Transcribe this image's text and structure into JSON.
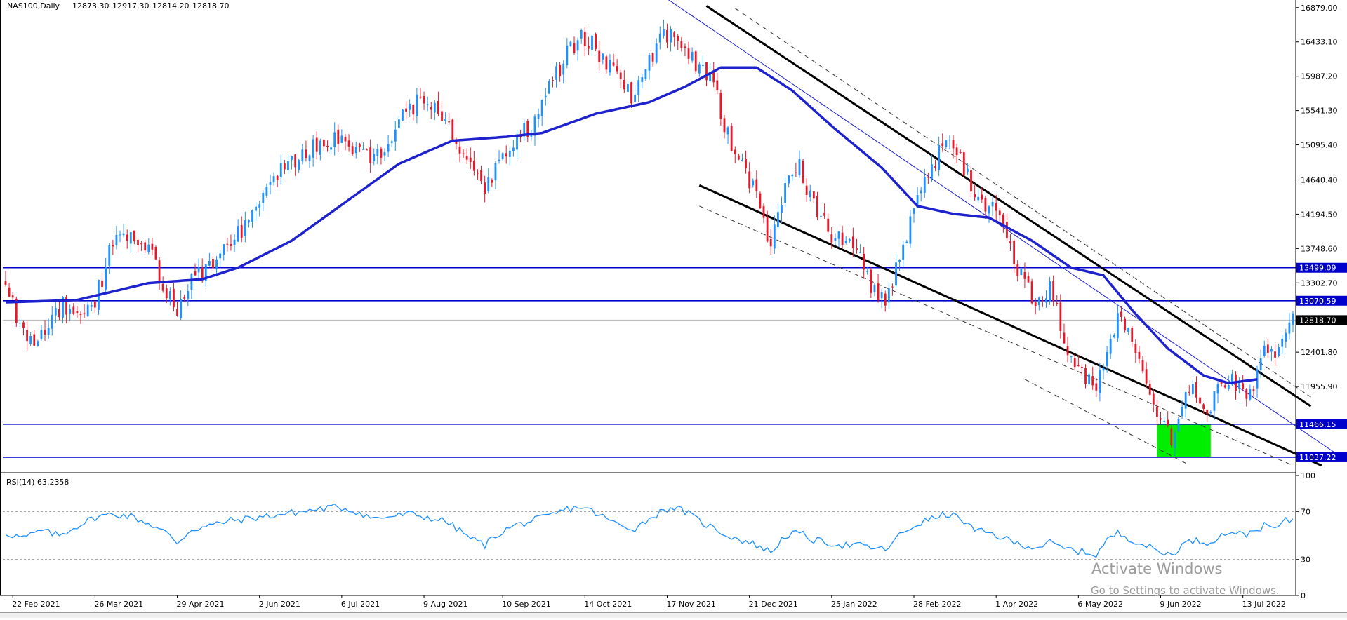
{
  "header": {
    "symbol": "NAS100,Daily",
    "open": "12873.30",
    "high": "12917.30",
    "low": "12814.20",
    "close": "12818.70"
  },
  "watermark": {
    "line1": "Activate Windows",
    "line2": "Go to Settings to activate Windows."
  },
  "chart_data": {
    "type": "candlestick",
    "instrument": "NAS100",
    "timeframe": "Daily",
    "price_axis": {
      "ylim": [
        10900,
        16950
      ],
      "ticks": [
        "16879.00",
        "16433.10",
        "15987.20",
        "15541.30",
        "15095.40",
        "14640.40",
        "14194.50",
        "13748.60",
        "13302.70",
        "12401.80",
        "11955.90"
      ],
      "tick_values": [
        16879.0,
        16433.1,
        15987.2,
        15541.3,
        15095.4,
        14640.4,
        14194.5,
        13748.6,
        13302.7,
        12401.8,
        11955.9
      ]
    },
    "time_axis": {
      "labels": [
        "22 Feb 2021",
        "26 Mar 2021",
        "29 Apr 2021",
        "2 Jun 2021",
        "6 Jul 2021",
        "9 Aug 2021",
        "10 Sep 2021",
        "14 Oct 2021",
        "17 Nov 2021",
        "21 Dec 2021",
        "25 Jan 2022",
        "28 Feb 2022",
        "1 Apr 2022",
        "6 May 2022",
        "9 Jun 2022",
        "13 Jul 2022"
      ],
      "label_bar_index": [
        2,
        25,
        48,
        71,
        94,
        117,
        139,
        162,
        185,
        208,
        231,
        254,
        277,
        300,
        323,
        346
      ]
    },
    "last_price": {
      "value": 12818.7,
      "label": "12818.70"
    },
    "horizontal_levels": [
      {
        "value": 13499.09,
        "label": "13499.09",
        "color": "#0000cc"
      },
      {
        "value": 13070.59,
        "label": "13070.59",
        "color": "#0000cc"
      },
      {
        "value": 11466.15,
        "label": "11466.15",
        "color": "#0000cc"
      },
      {
        "value": 11037.22,
        "label": "11037.22",
        "color": "#0000cc"
      }
    ],
    "colors": {
      "bull": "#1e90ff",
      "bear": "#e8182a",
      "ma": "#1e22cc",
      "level": "#0000cc",
      "zone": "#00ee00",
      "rsi": "#1e90ff"
    },
    "moving_average": [
      [
        0,
        13050
      ],
      [
        20,
        13080
      ],
      [
        40,
        13300
      ],
      [
        55,
        13350
      ],
      [
        65,
        13500
      ],
      [
        80,
        13850
      ],
      [
        95,
        14350
      ],
      [
        110,
        14850
      ],
      [
        125,
        15150
      ],
      [
        140,
        15200
      ],
      [
        150,
        15250
      ],
      [
        165,
        15500
      ],
      [
        180,
        15650
      ],
      [
        190,
        15850
      ],
      [
        200,
        16100
      ],
      [
        210,
        16100
      ],
      [
        220,
        15800
      ],
      [
        232,
        15300
      ],
      [
        245,
        14800
      ],
      [
        255,
        14300
      ],
      [
        265,
        14200
      ],
      [
        275,
        14150
      ],
      [
        287,
        13850
      ],
      [
        298,
        13500
      ],
      [
        307,
        13400
      ],
      [
        315,
        12950
      ],
      [
        325,
        12450
      ],
      [
        335,
        12100
      ],
      [
        342,
        12000
      ],
      [
        350,
        12050
      ]
    ],
    "price_path": [
      [
        0,
        13300
      ],
      [
        3,
        12900
      ],
      [
        8,
        12500
      ],
      [
        12,
        12700
      ],
      [
        16,
        13000
      ],
      [
        20,
        12900
      ],
      [
        25,
        13100
      ],
      [
        30,
        13800
      ],
      [
        35,
        14000
      ],
      [
        40,
        13800
      ],
      [
        45,
        13200
      ],
      [
        48,
        12900
      ],
      [
        52,
        13400
      ],
      [
        57,
        13500
      ],
      [
        62,
        13800
      ],
      [
        68,
        14100
      ],
      [
        73,
        14500
      ],
      [
        78,
        14800
      ],
      [
        83,
        15000
      ],
      [
        88,
        15100
      ],
      [
        93,
        15150
      ],
      [
        98,
        15000
      ],
      [
        103,
        14850
      ],
      [
        108,
        15200
      ],
      [
        113,
        15600
      ],
      [
        118,
        15650
      ],
      [
        123,
        15450
      ],
      [
        127,
        15100
      ],
      [
        130,
        14800
      ],
      [
        134,
        14450
      ],
      [
        137,
        14750
      ],
      [
        142,
        15150
      ],
      [
        147,
        15350
      ],
      [
        152,
        15800
      ],
      [
        157,
        16300
      ],
      [
        161,
        16500
      ],
      [
        164,
        16400
      ],
      [
        168,
        16200
      ],
      [
        172,
        15900
      ],
      [
        176,
        15700
      ],
      [
        181,
        16300
      ],
      [
        186,
        16600
      ],
      [
        190,
        16400
      ],
      [
        194,
        16100
      ],
      [
        198,
        15900
      ],
      [
        202,
        15200
      ],
      [
        206,
        14800
      ],
      [
        210,
        14400
      ],
      [
        214,
        13800
      ],
      [
        218,
        14600
      ],
      [
        222,
        14800
      ],
      [
        226,
        14300
      ],
      [
        230,
        14000
      ],
      [
        234,
        13800
      ],
      [
        238,
        13800
      ],
      [
        242,
        13300
      ],
      [
        246,
        13000
      ],
      [
        250,
        13600
      ],
      [
        254,
        14300
      ],
      [
        257,
        14600
      ],
      [
        261,
        15000
      ],
      [
        264,
        15200
      ],
      [
        268,
        14800
      ],
      [
        271,
        14400
      ],
      [
        275,
        14300
      ],
      [
        279,
        14100
      ],
      [
        282,
        13600
      ],
      [
        285,
        13300
      ],
      [
        288,
        13000
      ],
      [
        292,
        13200
      ],
      [
        295,
        12800
      ],
      [
        298,
        12300
      ],
      [
        302,
        12100
      ],
      [
        305,
        11900
      ],
      [
        308,
        12500
      ],
      [
        311,
        12800
      ],
      [
        314,
        12600
      ],
      [
        317,
        12300
      ],
      [
        320,
        11800
      ],
      [
        323,
        11500
      ],
      [
        326,
        11300
      ],
      [
        329,
        11700
      ],
      [
        332,
        11900
      ],
      [
        336,
        11600
      ],
      [
        340,
        12000
      ],
      [
        343,
        12100
      ],
      [
        346,
        11800
      ],
      [
        349,
        12000
      ],
      [
        352,
        12500
      ],
      [
        355,
        12300
      ],
      [
        358,
        12700
      ],
      [
        360,
        12850
      ]
    ],
    "zone": {
      "x0": 322,
      "x1": 337,
      "y_top": 11466.15,
      "y_bottom": 11037.22
    },
    "trendlines": [
      {
        "name": "upper-channel",
        "style": "solid",
        "width": 3,
        "p1": [
          196,
          16900
        ],
        "p2": [
          365,
          11700
        ]
      },
      {
        "name": "upper-channel-parallel",
        "style": "dashed",
        "width": 1,
        "p1": [
          204,
          16870
        ],
        "p2": [
          365,
          11820
        ]
      },
      {
        "name": "lower-channel",
        "style": "solid",
        "width": 3,
        "p1": [
          194,
          14570
        ],
        "p2": [
          368,
          10930
        ]
      },
      {
        "name": "lower-channel-parallel",
        "style": "dashed",
        "width": 1,
        "p1": [
          194,
          14300
        ],
        "p2": [
          360,
          10930
        ]
      },
      {
        "name": "thin-descending-line",
        "style": "solid",
        "width": 1,
        "p1": [
          180,
          17150
        ],
        "p2": [
          377,
          10930
        ]
      },
      {
        "name": "short-dashed-line",
        "style": "dashed",
        "width": 1,
        "p1": [
          285,
          12050
        ],
        "p2": [
          330,
          10960
        ]
      }
    ],
    "rsi": {
      "label": "RSI(14) 63.2358",
      "value": 63.2358,
      "ylim": [
        0,
        100
      ],
      "ticks": [
        "100",
        "70",
        "30",
        "0"
      ],
      "tick_values": [
        100,
        70,
        30,
        0
      ],
      "levels": [
        70,
        30
      ],
      "series": [
        [
          0,
          52
        ],
        [
          5,
          48
        ],
        [
          10,
          54
        ],
        [
          15,
          50
        ],
        [
          20,
          58
        ],
        [
          25,
          65
        ],
        [
          30,
          68
        ],
        [
          35,
          66
        ],
        [
          40,
          60
        ],
        [
          45,
          52
        ],
        [
          48,
          44
        ],
        [
          52,
          55
        ],
        [
          57,
          58
        ],
        [
          62,
          62
        ],
        [
          68,
          64
        ],
        [
          73,
          66
        ],
        [
          78,
          68
        ],
        [
          83,
          70
        ],
        [
          88,
          72
        ],
        [
          93,
          74
        ],
        [
          98,
          70
        ],
        [
          103,
          64
        ],
        [
          108,
          66
        ],
        [
          113,
          68
        ],
        [
          118,
          65
        ],
        [
          123,
          62
        ],
        [
          127,
          54
        ],
        [
          130,
          48
        ],
        [
          134,
          42
        ],
        [
          137,
          50
        ],
        [
          142,
          58
        ],
        [
          147,
          62
        ],
        [
          152,
          66
        ],
        [
          157,
          72
        ],
        [
          161,
          74
        ],
        [
          164,
          70
        ],
        [
          168,
          64
        ],
        [
          172,
          58
        ],
        [
          176,
          56
        ],
        [
          181,
          66
        ],
        [
          186,
          74
        ],
        [
          190,
          70
        ],
        [
          194,
          62
        ],
        [
          198,
          56
        ],
        [
          202,
          50
        ],
        [
          206,
          46
        ],
        [
          210,
          42
        ],
        [
          214,
          36
        ],
        [
          218,
          50
        ],
        [
          222,
          52
        ],
        [
          226,
          46
        ],
        [
          230,
          44
        ],
        [
          234,
          42
        ],
        [
          238,
          42
        ],
        [
          242,
          40
        ],
        [
          246,
          38
        ],
        [
          250,
          50
        ],
        [
          254,
          58
        ],
        [
          257,
          62
        ],
        [
          261,
          66
        ],
        [
          264,
          68
        ],
        [
          268,
          62
        ],
        [
          271,
          54
        ],
        [
          275,
          52
        ],
        [
          279,
          48
        ],
        [
          282,
          44
        ],
        [
          285,
          42
        ],
        [
          288,
          40
        ],
        [
          292,
          44
        ],
        [
          295,
          40
        ],
        [
          298,
          38
        ],
        [
          302,
          36
        ],
        [
          305,
          34
        ],
        [
          308,
          46
        ],
        [
          311,
          52
        ],
        [
          314,
          48
        ],
        [
          317,
          44
        ],
        [
          320,
          40
        ],
        [
          323,
          36
        ],
        [
          326,
          34
        ],
        [
          329,
          42
        ],
        [
          332,
          46
        ],
        [
          336,
          44
        ],
        [
          340,
          50
        ],
        [
          343,
          54
        ],
        [
          346,
          50
        ],
        [
          349,
          54
        ],
        [
          352,
          58
        ],
        [
          355,
          56
        ],
        [
          358,
          62
        ],
        [
          360,
          63
        ]
      ]
    }
  }
}
